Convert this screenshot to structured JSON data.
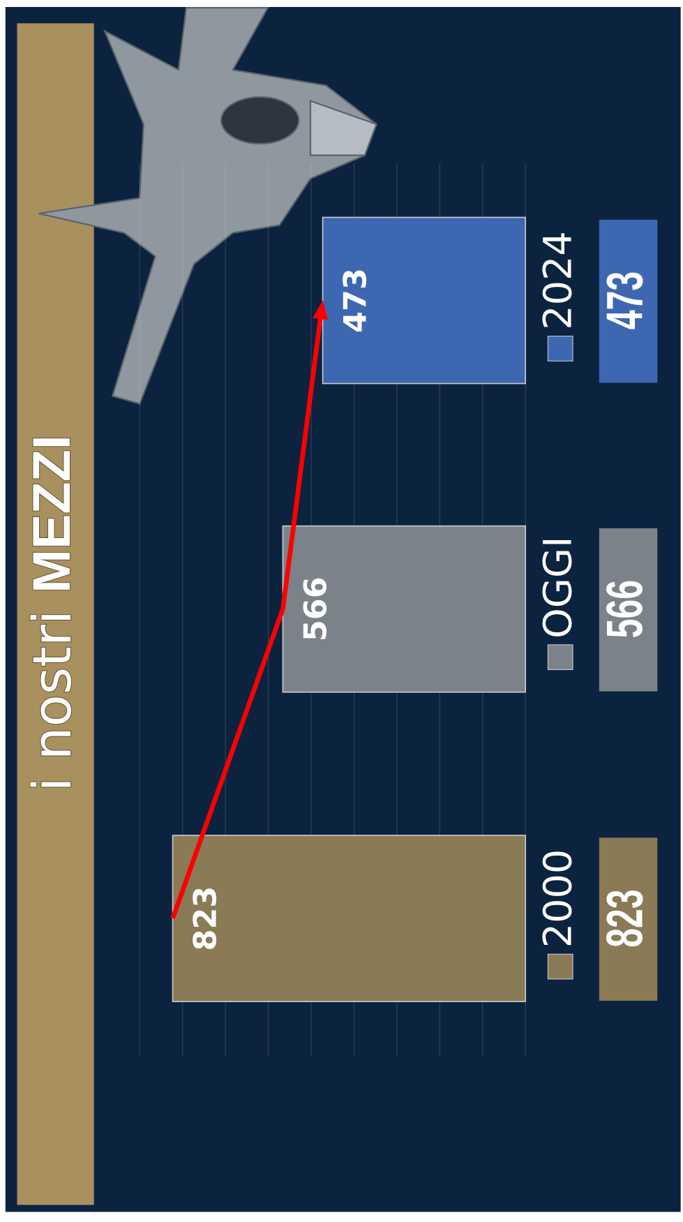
{
  "chart_data": {
    "type": "bar",
    "title_parts": [
      "i nostri",
      "MEZZI"
    ],
    "categories": [
      "2000",
      "OGGI",
      "2024"
    ],
    "values": [
      823,
      566,
      473
    ],
    "colors": [
      "#8a7a55",
      "#7b828a",
      "#3d67b1"
    ],
    "ylim": [
      0,
      900
    ],
    "yticks": [
      0,
      100,
      200,
      300,
      400,
      500,
      600,
      700,
      800,
      900
    ],
    "grid": true,
    "trend_arrow_color": "#ff0000"
  }
}
